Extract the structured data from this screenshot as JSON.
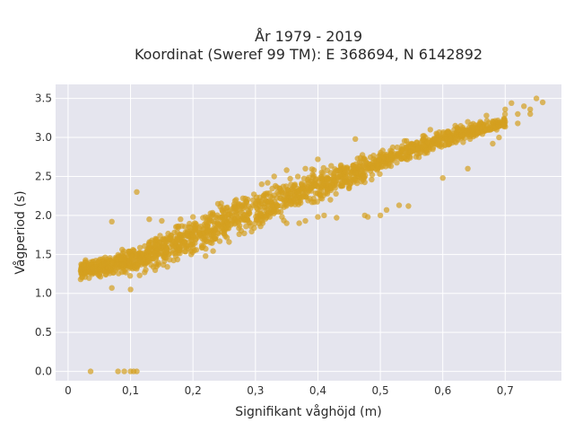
{
  "colors": {
    "plot_background": "#e5e5ee",
    "points": "#d4a020",
    "grid": "#ffffff"
  },
  "chart_data": {
    "type": "scatter",
    "title_lines": [
      "År 1979 - 2019",
      "Koordinat (Sweref 99 TM): E 368694, N 6142892"
    ],
    "xlabel": "Signifikant våghöjd (m)",
    "ylabel": "Vågperiod (s)",
    "xlim": [
      -0.02,
      0.79
    ],
    "ylim": [
      -0.12,
      3.68
    ],
    "xticks": [
      0,
      0.1,
      0.2,
      0.3,
      0.4,
      0.5,
      0.6,
      0.7
    ],
    "xtick_labels": [
      "0",
      "0,1",
      "0,2",
      "0,3",
      "0,4",
      "0,5",
      "0,6",
      "0,7"
    ],
    "yticks": [
      0,
      0.5,
      1,
      1.5,
      2,
      2.5,
      3,
      3.5
    ],
    "ytick_labels": [
      "0.0",
      "0.5",
      "1.0",
      "1.5",
      "2.0",
      "2.5",
      "3.0",
      "3.5"
    ],
    "grid": true,
    "legend": "none",
    "point_cloud": {
      "trend": [
        [
          0.02,
          1.3
        ],
        [
          0.1,
          1.4
        ],
        [
          0.2,
          1.72
        ],
        [
          0.3,
          2.08
        ],
        [
          0.4,
          2.38
        ],
        [
          0.5,
          2.68
        ],
        [
          0.6,
          2.98
        ],
        [
          0.7,
          3.2
        ],
        [
          0.76,
          3.42
        ]
      ],
      "spread": [
        [
          0.02,
          0.1
        ],
        [
          0.1,
          0.16
        ],
        [
          0.2,
          0.24
        ],
        [
          0.3,
          0.24
        ],
        [
          0.4,
          0.2
        ],
        [
          0.5,
          0.14
        ],
        [
          0.6,
          0.1
        ],
        [
          0.7,
          0.08
        ]
      ]
    },
    "points": [
      [
        0.036,
        0.0
      ],
      [
        0.08,
        0.0
      ],
      [
        0.09,
        0.0
      ],
      [
        0.1,
        0.0
      ],
      [
        0.105,
        0.0
      ],
      [
        0.11,
        0.0
      ],
      [
        0.11,
        2.3
      ],
      [
        0.07,
        1.92
      ],
      [
        0.02,
        1.18
      ],
      [
        0.07,
        1.07
      ],
      [
        0.1,
        1.05
      ],
      [
        0.475,
        2.0
      ],
      [
        0.51,
        2.07
      ],
      [
        0.53,
        2.13
      ],
      [
        0.545,
        2.12
      ],
      [
        0.5,
        2.0
      ],
      [
        0.48,
        1.98
      ],
      [
        0.47,
        2.48
      ],
      [
        0.46,
        2.55
      ],
      [
        0.48,
        2.6
      ],
      [
        0.44,
        2.38
      ],
      [
        0.42,
        2.2
      ],
      [
        0.38,
        1.93
      ],
      [
        0.4,
        1.98
      ],
      [
        0.41,
        2.0
      ],
      [
        0.43,
        1.97
      ],
      [
        0.37,
        1.9
      ],
      [
        0.35,
        1.9
      ],
      [
        0.46,
        2.98
      ],
      [
        0.6,
        2.48
      ],
      [
        0.64,
        2.6
      ],
      [
        0.68,
        2.92
      ],
      [
        0.69,
        3.0
      ],
      [
        0.7,
        3.2
      ],
      [
        0.72,
        3.3
      ],
      [
        0.73,
        3.4
      ],
      [
        0.74,
        3.36
      ],
      [
        0.75,
        3.5
      ],
      [
        0.76,
        3.45
      ],
      [
        0.71,
        3.44
      ],
      [
        0.72,
        3.18
      ],
      [
        0.74,
        3.3
      ],
      [
        0.66,
        3.2
      ],
      [
        0.67,
        3.28
      ],
      [
        0.7,
        3.36
      ],
      [
        0.62,
        3.15
      ],
      [
        0.64,
        3.2
      ],
      [
        0.58,
        3.1
      ],
      [
        0.6,
        3.05
      ],
      [
        0.55,
        2.92
      ],
      [
        0.57,
        3.02
      ],
      [
        0.53,
        2.8
      ],
      [
        0.13,
        1.95
      ],
      [
        0.15,
        1.93
      ],
      [
        0.18,
        1.95
      ],
      [
        0.2,
        1.98
      ],
      [
        0.22,
        1.98
      ],
      [
        0.24,
        2.15
      ],
      [
        0.28,
        2.22
      ],
      [
        0.31,
        2.4
      ],
      [
        0.33,
        2.5
      ],
      [
        0.35,
        2.58
      ],
      [
        0.38,
        2.6
      ],
      [
        0.4,
        2.72
      ]
    ]
  }
}
